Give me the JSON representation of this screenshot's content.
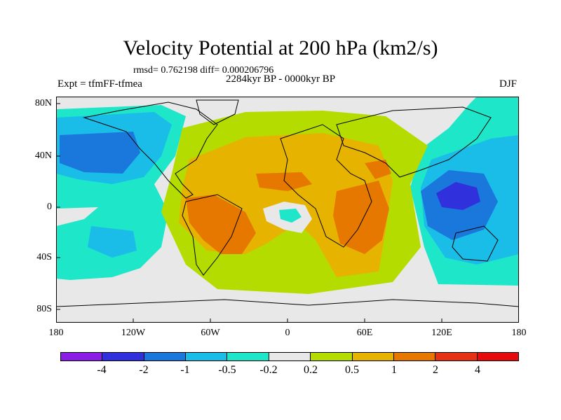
{
  "title": "Velocity Potential at 200 hPa (km2/s)",
  "stats": "rmsd= 0.762198 diff= 0.000206796",
  "experiment": "Expt = tfmFF-tfmea",
  "period": "2284kyr BP - 0000kyr BP",
  "season": "DJF",
  "x_ticks": [
    "180",
    "120W",
    "60W",
    "0",
    "60E",
    "120E",
    "180"
  ],
  "y_ticks": [
    "80N",
    "40N",
    "0",
    "40S",
    "80S"
  ],
  "colorbar": {
    "labels": [
      "-4",
      "-2",
      "-1",
      "-0.5",
      "-0.2",
      "0.2",
      "0.5",
      "1",
      "2",
      "4"
    ],
    "colors": [
      "#8a1ee6",
      "#3030dd",
      "#1a78dc",
      "#1abce8",
      "#1ee6c8",
      "#e8e8e8",
      "#b4dc00",
      "#e6b400",
      "#e67800",
      "#e63214",
      "#e60a0a"
    ]
  },
  "palette": {
    "neutral": "#e8e8e8",
    "pos1": "#b4dc00",
    "pos2": "#e6b400",
    "pos3": "#e67800",
    "neg1": "#1ee6c8",
    "neg2": "#1abce8",
    "neg3": "#1a78dc",
    "neg4": "#3030dd"
  }
}
